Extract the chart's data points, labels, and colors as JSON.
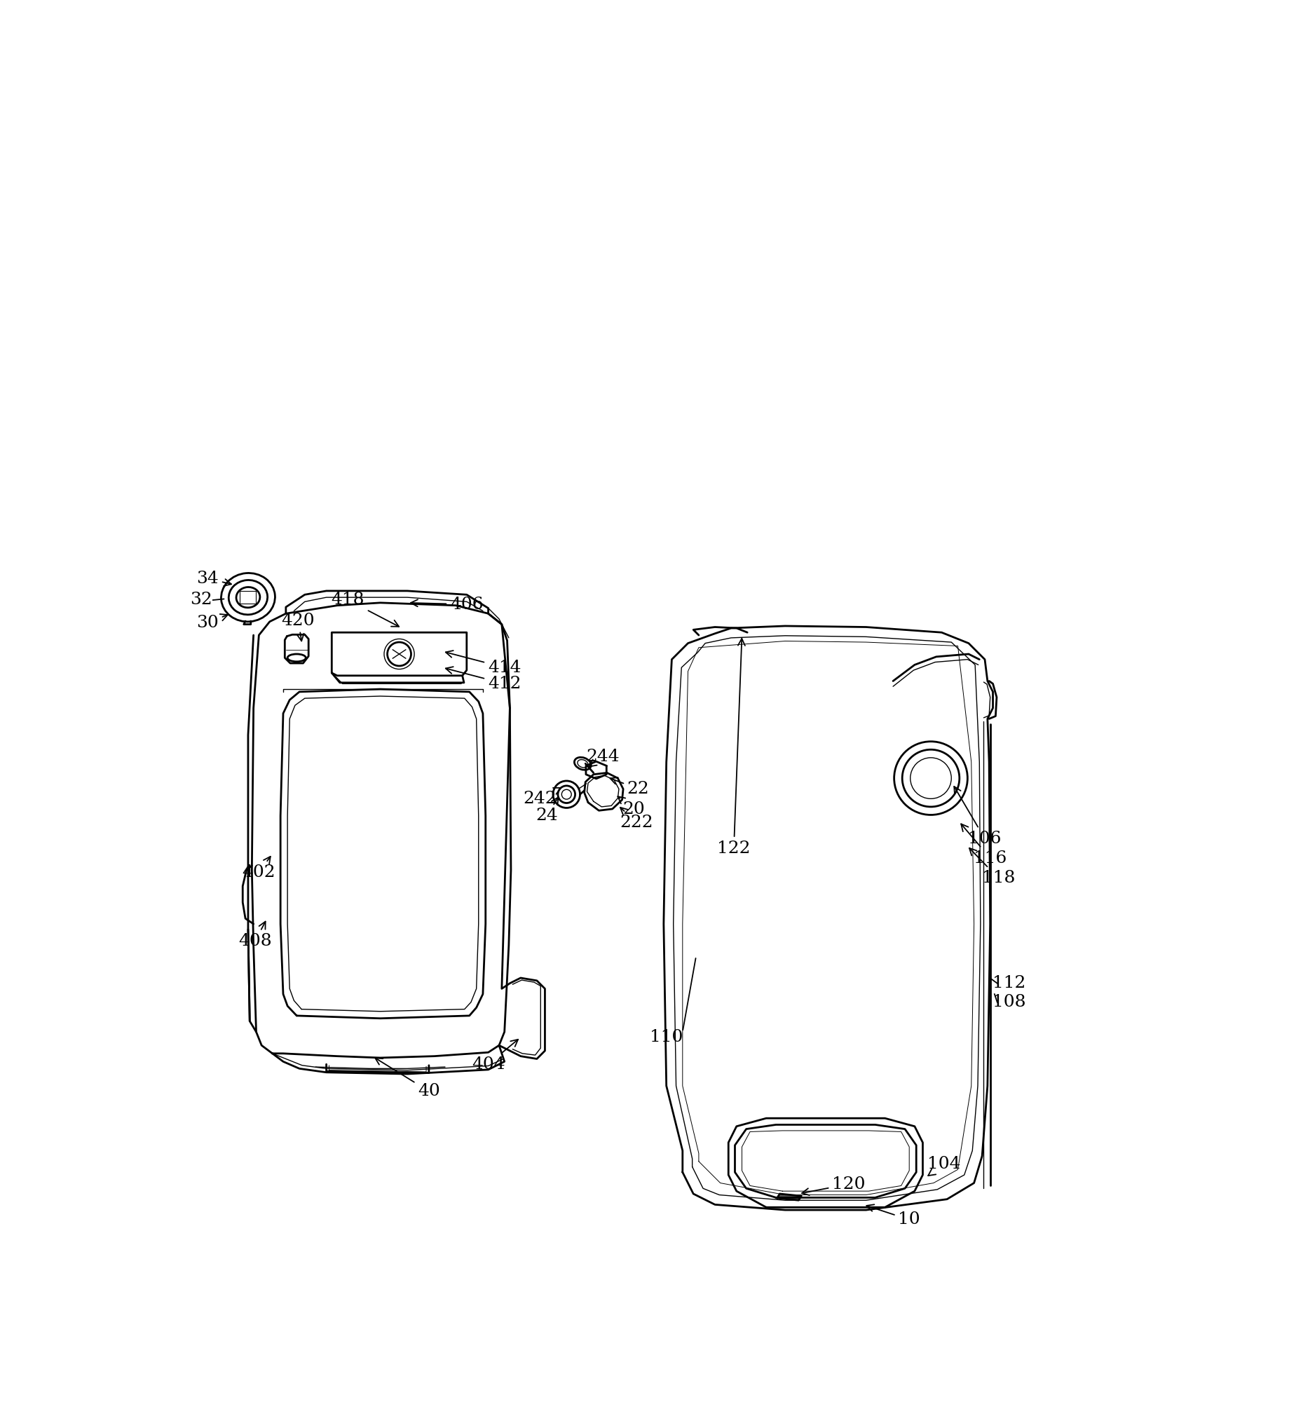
{
  "bg_color": "#ffffff",
  "line_color": "#000000",
  "lw": 2.0,
  "tlw": 1.0,
  "figsize": [
    18.4,
    20.0
  ],
  "dpi": 100
}
